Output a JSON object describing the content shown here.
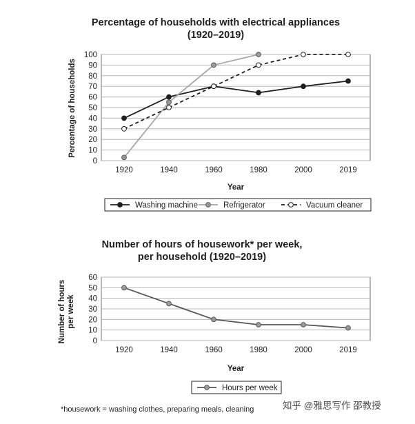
{
  "watermark": "知乎 @雅思写作 邵教授",
  "footnote": "*housework = washing clothes, preparing meals, cleaning",
  "chart_data": [
    {
      "type": "line",
      "title": [
        "Percentage of households with electrical appliances",
        "(1920–2019)"
      ],
      "xlabel": "Year",
      "ylabel": "Percentage of households",
      "categories": [
        "1920",
        "1940",
        "1960",
        "1980",
        "2000",
        "2019"
      ],
      "ylim": [
        0,
        100
      ],
      "yticks": [
        0,
        10,
        20,
        30,
        40,
        50,
        60,
        70,
        80,
        90,
        100
      ],
      "grid": "horizontal",
      "legend_position": "bottom",
      "series": [
        {
          "name": "Washing machine",
          "values": [
            40,
            60,
            70,
            64,
            70,
            75
          ],
          "color": "#1f1f1f",
          "dash": "none",
          "marker": "filled-dark"
        },
        {
          "name": "Refrigerator",
          "values": [
            3,
            55,
            90,
            100,
            null,
            null
          ],
          "color": "#a6a6a6",
          "dash": "none",
          "marker": "filled-grey"
        },
        {
          "name": "Vacuum cleaner",
          "values": [
            30,
            50,
            70,
            90,
            100,
            100
          ],
          "color": "#1f1f1f",
          "dash": "5,4",
          "marker": "hollow"
        }
      ]
    },
    {
      "type": "line",
      "title": [
        "Number of hours of housework* per week,",
        "per household (1920–2019)"
      ],
      "xlabel": "Year",
      "ylabel": [
        "Number of hours",
        "per week"
      ],
      "categories": [
        "1920",
        "1940",
        "1960",
        "1980",
        "2000",
        "2019"
      ],
      "ylim": [
        0,
        60
      ],
      "yticks": [
        0,
        10,
        20,
        30,
        40,
        50,
        60
      ],
      "grid": "horizontal",
      "legend_position": "bottom",
      "series": [
        {
          "name": "Hours per week",
          "values": [
            50,
            35,
            20,
            15,
            15,
            12
          ],
          "color": "#555555",
          "dash": "none",
          "marker": "filled-grey"
        }
      ]
    }
  ]
}
